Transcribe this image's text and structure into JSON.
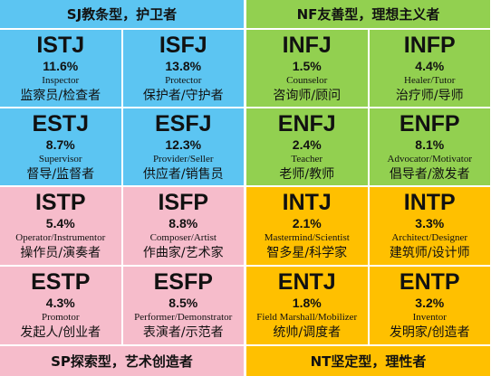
{
  "groups": [
    {
      "title": "SJ教条型，护卫者",
      "types": [
        {
          "code": "ISTJ",
          "percent": "11.6%",
          "role": "Inspector",
          "chinese": "监察员/检查者"
        },
        {
          "code": "ISFJ",
          "percent": "13.8%",
          "role": "Protector",
          "chinese": "保护者/守护者"
        },
        {
          "code": "ESTJ",
          "percent": "8.7%",
          "role": "Supervisor",
          "chinese": "督导/监督者"
        },
        {
          "code": "ESFJ",
          "percent": "12.3%",
          "role": "Provider/Seller",
          "chinese": "供应者/销售员"
        }
      ]
    },
    {
      "title": "NF友善型，理想主义者",
      "types": [
        {
          "code": "INFJ",
          "percent": "1.5%",
          "role": "Counselor",
          "chinese": "咨询师/顾问"
        },
        {
          "code": "INFP",
          "percent": "4.4%",
          "role": "Healer/Tutor",
          "chinese": "治疗师/导师"
        },
        {
          "code": "ENFJ",
          "percent": "2.4%",
          "role": "Teacher",
          "chinese": "老师/教师"
        },
        {
          "code": "ENFP",
          "percent": "8.1%",
          "role": "Advocator/Motivator",
          "chinese": "倡导者/激发者"
        }
      ]
    },
    {
      "title": "SP探索型，艺术创造者",
      "types": [
        {
          "code": "ISTP",
          "percent": "5.4%",
          "role": "Operator/Instrumentor",
          "chinese": "操作员/演奏者"
        },
        {
          "code": "ISFP",
          "percent": "8.8%",
          "role": "Composer/Artist",
          "chinese": "作曲家/艺术家"
        },
        {
          "code": "ESTP",
          "percent": "4.3%",
          "role": "Promotor",
          "chinese": "发起人/创业者"
        },
        {
          "code": "ESFP",
          "percent": "8.5%",
          "role": "Performer/Demonstrator",
          "chinese": "表演者/示范者"
        }
      ]
    },
    {
      "title": "NT坚定型，理性者",
      "types": [
        {
          "code": "INTJ",
          "percent": "2.1%",
          "role": "Mastermind/Scientist",
          "chinese": "智多星/科学家"
        },
        {
          "code": "INTP",
          "percent": "3.3%",
          "role": "Architect/Designer",
          "chinese": "建筑师/设计师"
        },
        {
          "code": "ENTJ",
          "percent": "1.8%",
          "role": "Field Marshall/Mobilizer",
          "chinese": "统帅/调度者"
        },
        {
          "code": "ENTP",
          "percent": "3.2%",
          "role": "Inventor",
          "chinese": "发明家/创造者"
        }
      ]
    }
  ]
}
